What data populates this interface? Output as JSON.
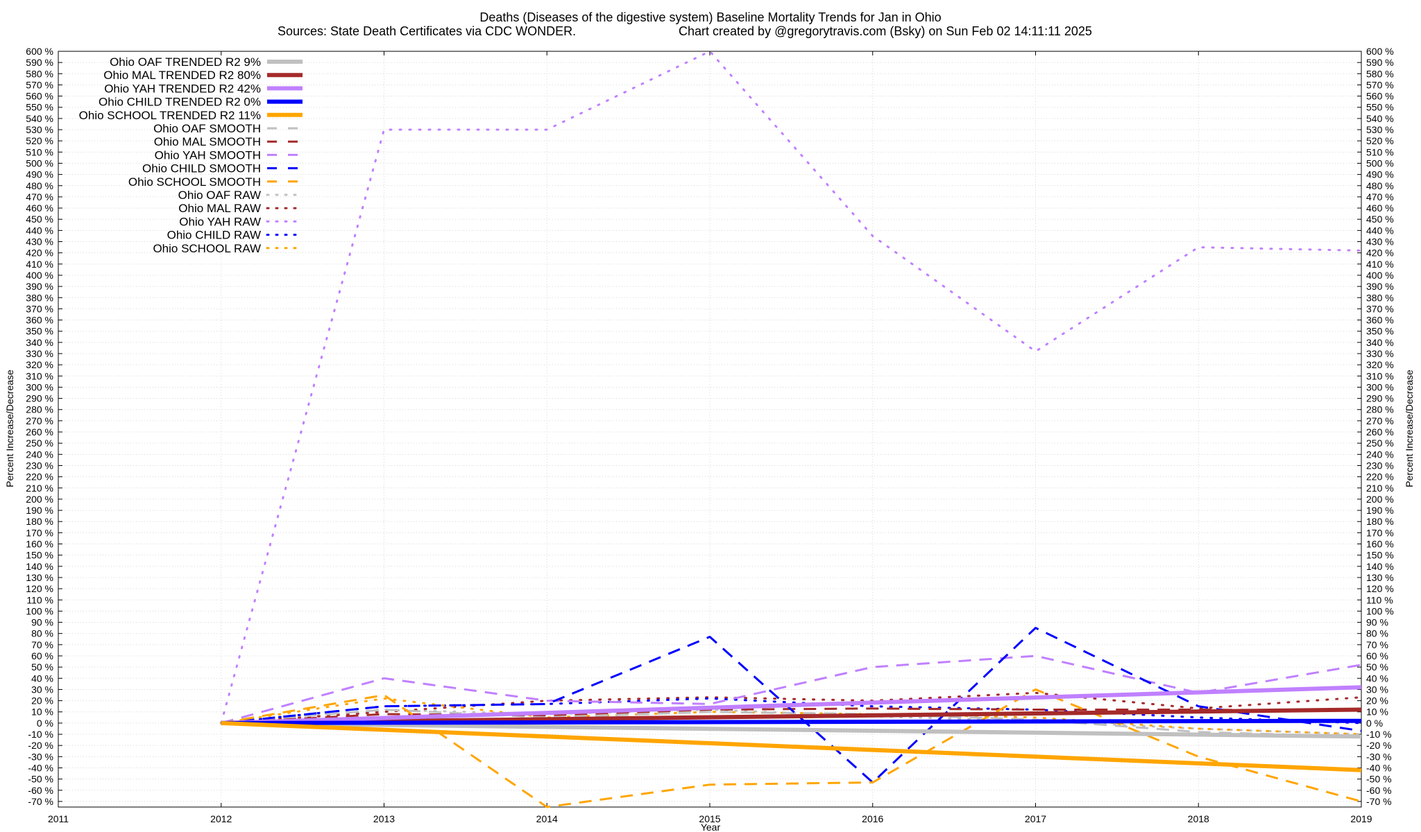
{
  "chart_data": {
    "type": "line",
    "title": "Deaths (Diseases of the digestive system)  Baseline Mortality Trends for Jan in Ohio",
    "subtitle_left": "Sources: State Death Certificates via CDC WONDER.",
    "subtitle_right": "Chart created by @gregorytravis.com (Bsky) on Sun Feb 02 14:11:11 2025",
    "xlabel": "Year",
    "ylabel": "Percent Increase/Decrease",
    "ylabel_right": "Percent Increase/Decrease",
    "xlim": [
      2011,
      2019
    ],
    "ylim": [
      -75,
      600
    ],
    "x_ticks": [
      "2011",
      "2012",
      "2013",
      "2014",
      "2015",
      "2016",
      "2017",
      "2018",
      "2019"
    ],
    "y_tick_step": 10,
    "y_tick_suffix": " %",
    "grid": true,
    "legend_position": "top-left",
    "series": [
      {
        "name": "Ohio OAF TRENDED R2",
        "r2": "9%",
        "style": "solid",
        "color": "#c0c0c0",
        "x": [
          2012,
          2019
        ],
        "y": [
          0,
          -12
        ]
      },
      {
        "name": "Ohio MAL TRENDED R2",
        "r2": "80%",
        "style": "solid",
        "color": "#a52a2a",
        "x": [
          2012,
          2019
        ],
        "y": [
          0,
          12
        ]
      },
      {
        "name": "Ohio YAH TRENDED R2",
        "r2": "42%",
        "style": "solid",
        "color": "#c080ff",
        "x": [
          2012,
          2019
        ],
        "y": [
          0,
          32
        ]
      },
      {
        "name": "Ohio CHILD TRENDED R2",
        "r2": "0%",
        "style": "solid",
        "color": "#0000ff",
        "x": [
          2012,
          2019
        ],
        "y": [
          0,
          2
        ]
      },
      {
        "name": "Ohio SCHOOL TRENDED R2",
        "r2": "11%",
        "style": "solid",
        "color": "#ffa500",
        "x": [
          2012,
          2019
        ],
        "y": [
          0,
          -42
        ]
      },
      {
        "name": "Ohio OAF SMOOTH",
        "style": "dashed",
        "color": "#c0c0c0",
        "x": [
          2012,
          2013,
          2014,
          2015,
          2016,
          2017,
          2018,
          2019
        ],
        "y": [
          0,
          12,
          5,
          10,
          8,
          3,
          -8,
          -12
        ]
      },
      {
        "name": "Ohio MAL SMOOTH",
        "style": "dashed",
        "color": "#a52a2a",
        "x": [
          2012,
          2013,
          2014,
          2015,
          2016,
          2017,
          2018,
          2019
        ],
        "y": [
          0,
          8,
          7,
          12,
          13,
          12,
          12,
          11
        ]
      },
      {
        "name": "Ohio YAH SMOOTH",
        "style": "dashed",
        "color": "#c080ff",
        "x": [
          2012,
          2013,
          2014,
          2015,
          2016,
          2017,
          2018,
          2019
        ],
        "y": [
          0,
          40,
          20,
          17,
          50,
          60,
          27,
          52
        ]
      },
      {
        "name": "Ohio CHILD SMOOTH",
        "style": "dashed",
        "color": "#0000ff",
        "x": [
          2012,
          2013,
          2014,
          2015,
          2016,
          2017,
          2018,
          2019
        ],
        "y": [
          0,
          15,
          17,
          77,
          -53,
          85,
          15,
          -7
        ]
      },
      {
        "name": "Ohio SCHOOL SMOOTH",
        "style": "dashed",
        "color": "#ffa500",
        "x": [
          2012,
          2013,
          2014,
          2015,
          2016,
          2017,
          2018,
          2019
        ],
        "y": [
          0,
          25,
          -75,
          -55,
          -53,
          30,
          -30,
          -70
        ]
      },
      {
        "name": "Ohio OAF RAW",
        "style": "dotted",
        "color": "#c0c0c0",
        "x": [
          2012,
          2013,
          2014,
          2015,
          2016,
          2017,
          2018,
          2019
        ],
        "y": [
          0,
          12,
          8,
          12,
          6,
          2,
          -5,
          -10
        ]
      },
      {
        "name": "Ohio MAL RAW",
        "style": "dotted",
        "color": "#a52a2a",
        "x": [
          2012,
          2013,
          2014,
          2015,
          2016,
          2017,
          2018,
          2019
        ],
        "y": [
          0,
          10,
          20,
          23,
          20,
          27,
          13,
          23
        ]
      },
      {
        "name": "Ohio YAH RAW",
        "style": "dotted",
        "color": "#c080ff",
        "x": [
          2012,
          2013,
          2014,
          2015,
          2016,
          2017,
          2018,
          2019
        ],
        "y": [
          0,
          530,
          530,
          600,
          435,
          332,
          425,
          422
        ]
      },
      {
        "name": "Ohio CHILD RAW",
        "style": "dotted",
        "color": "#0000ff",
        "x": [
          2012,
          2013,
          2014,
          2015,
          2016,
          2017,
          2018,
          2019
        ],
        "y": [
          0,
          15,
          17,
          22,
          15,
          12,
          5,
          0
        ]
      },
      {
        "name": "Ohio SCHOOL RAW",
        "style": "dotted",
        "color": "#ffa500",
        "x": [
          2012,
          2013,
          2014,
          2015,
          2016,
          2017,
          2018,
          2019
        ],
        "y": [
          0,
          22,
          5,
          10,
          8,
          5,
          -5,
          -10
        ]
      }
    ]
  }
}
